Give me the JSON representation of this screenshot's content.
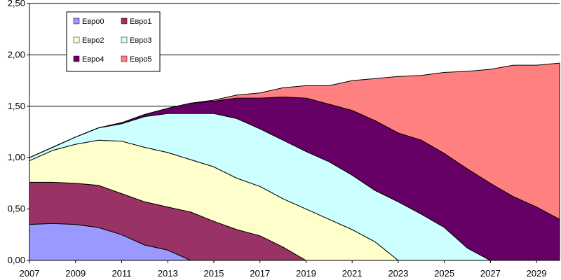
{
  "chart_data": {
    "type": "area",
    "stacked": true,
    "title": "",
    "xlabel": "",
    "ylabel": "",
    "xlim": [
      2007,
      2030
    ],
    "ylim": [
      0,
      2.5
    ],
    "grid": "horizontal",
    "legend_position": "top-left",
    "x_ticks": [
      "2007",
      "2009",
      "2011",
      "2013",
      "2015",
      "2017",
      "2019",
      "2021",
      "2023",
      "2025",
      "2027",
      "2029"
    ],
    "y_ticks": [
      "0,00",
      "0,50",
      "1,00",
      "1,50",
      "2,00",
      "2,50"
    ],
    "x": [
      2007,
      2008,
      2009,
      2010,
      2011,
      2012,
      2013,
      2014,
      2015,
      2016,
      2017,
      2018,
      2019,
      2020,
      2021,
      2022,
      2023,
      2024,
      2025,
      2026,
      2027,
      2028,
      2029,
      2030
    ],
    "series": [
      {
        "name": "Евро0",
        "color": "#9999ff",
        "values": [
          0.35,
          0.36,
          0.35,
          0.32,
          0.25,
          0.15,
          0.1,
          0,
          0,
          0,
          0,
          0,
          0,
          0,
          0,
          0,
          0,
          0,
          0,
          0,
          0,
          0,
          0,
          0
        ]
      },
      {
        "name": "Евро1",
        "color": "#993366",
        "values": [
          0.41,
          0.4,
          0.4,
          0.41,
          0.4,
          0.42,
          0.42,
          0.47,
          0.38,
          0.3,
          0.24,
          0.13,
          0,
          0,
          0,
          0,
          0,
          0,
          0,
          0,
          0,
          0,
          0,
          0
        ]
      },
      {
        "name": "Евро2",
        "color": "#ffffcc",
        "values": [
          0.21,
          0.31,
          0.38,
          0.44,
          0.51,
          0.53,
          0.53,
          0.51,
          0.53,
          0.5,
          0.48,
          0.47,
          0.5,
          0.4,
          0.3,
          0.18,
          0,
          0,
          0,
          0,
          0,
          0,
          0,
          0
        ]
      },
      {
        "name": "Евро3",
        "color": "#ccffff",
        "values": [
          0.03,
          0.03,
          0.07,
          0.12,
          0.17,
          0.3,
          0.38,
          0.45,
          0.52,
          0.58,
          0.56,
          0.57,
          0.56,
          0.56,
          0.53,
          0.5,
          0.57,
          0.45,
          0.32,
          0.12,
          0,
          0,
          0,
          0
        ]
      },
      {
        "name": "Евро4",
        "color": "#660066",
        "values": [
          0,
          0,
          0,
          0,
          0.01,
          0.02,
          0.05,
          0.1,
          0.12,
          0.2,
          0.3,
          0.42,
          0.52,
          0.56,
          0.63,
          0.68,
          0.67,
          0.72,
          0.72,
          0.77,
          0.75,
          0.62,
          0.52,
          0.4
        ]
      },
      {
        "name": "Евро5",
        "color": "#ff8080",
        "values": [
          0,
          0,
          0,
          0,
          0,
          0,
          0,
          0,
          0.01,
          0.03,
          0.05,
          0.09,
          0.12,
          0.18,
          0.29,
          0.41,
          0.55,
          0.63,
          0.79,
          0.95,
          1.11,
          1.28,
          1.38,
          1.52
        ]
      }
    ]
  }
}
